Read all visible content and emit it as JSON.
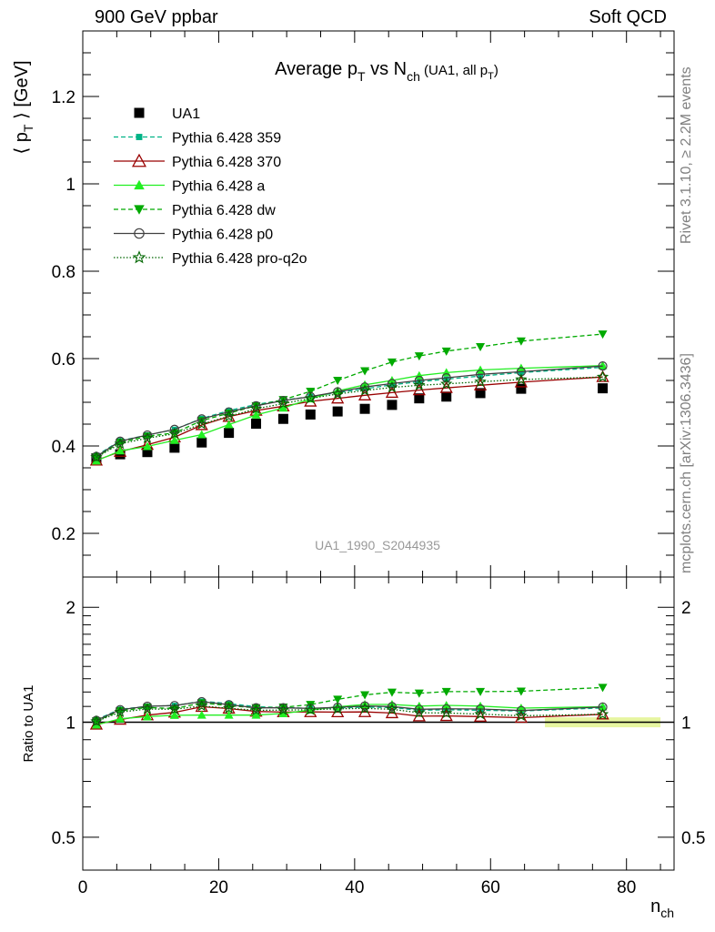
{
  "header": {
    "left": "900 GeV ppbar",
    "right": "Soft QCD"
  },
  "side_labels": {
    "rivet": "Rivet 3.1.10, ≥ 2.2M events",
    "mcplots": "mcplots.cern.ch [arXiv:1306.3436]"
  },
  "chart_data": [
    {
      "type": "line",
      "panel": "main",
      "title": {
        "main": "Average p",
        "sub1": "T",
        "mid": " vs N",
        "sub2": "ch",
        "extra": " (UA1, all p",
        "sub3": "T",
        "close": ")"
      },
      "ylabel": {
        "open": "⟨ p",
        "sub": "T",
        "close": " ⟩ [GeV]"
      },
      "ylim": [
        0.1,
        1.35
      ],
      "xlim": [
        0,
        87
      ],
      "yticks": [
        0.2,
        0.4,
        0.6,
        0.8,
        1,
        1.2
      ],
      "ytick_labels": [
        "0.2",
        "0.4",
        "0.6",
        "0.8",
        "1",
        "1.2"
      ],
      "watermark": "UA1_1990_S2044935",
      "legend_position": "top-left",
      "x": [
        2,
        5.5,
        9.5,
        13.5,
        17.5,
        21.5,
        25.5,
        29.5,
        33.5,
        37.5,
        41.5,
        45.5,
        49.5,
        53.5,
        58.5,
        64.5,
        76.5
      ],
      "series": [
        {
          "name": "UA1",
          "color": "#000000",
          "marker": "square",
          "line": "none",
          "values": [
            0.372,
            0.381,
            0.386,
            0.396,
            0.408,
            0.43,
            0.451,
            0.462,
            0.472,
            0.479,
            0.485,
            0.494,
            0.509,
            0.513,
            0.521,
            0.531,
            0.532
          ]
        },
        {
          "name": "Pythia 6.428 359",
          "color": "#00b386",
          "marker": "small-square",
          "line": "dashed",
          "values": [
            0.378,
            0.412,
            0.425,
            0.438,
            0.463,
            0.481,
            0.495,
            0.505,
            0.513,
            0.522,
            0.531,
            0.54,
            0.547,
            0.553,
            0.56,
            0.568,
            0.58
          ]
        },
        {
          "name": "Pythia 6.428 370",
          "color": "#990000",
          "marker": "open-triangle",
          "line": "solid",
          "values": [
            0.367,
            0.387,
            0.403,
            0.42,
            0.448,
            0.467,
            0.481,
            0.491,
            0.502,
            0.509,
            0.516,
            0.522,
            0.528,
            0.533,
            0.539,
            0.546,
            0.558
          ]
        },
        {
          "name": "Pythia 6.428 a",
          "color": "#22ee22",
          "marker": "triangle",
          "line": "solid",
          "values": [
            0.366,
            0.389,
            0.399,
            0.413,
            0.426,
            0.449,
            0.471,
            0.487,
            0.508,
            0.526,
            0.54,
            0.55,
            0.561,
            0.568,
            0.574,
            0.578,
            0.584
          ]
        },
        {
          "name": "Pythia 6.428 dw",
          "color": "#00aa00",
          "marker": "triangle-down",
          "line": "dashed",
          "values": [
            0.375,
            0.408,
            0.422,
            0.43,
            0.458,
            0.475,
            0.492,
            0.506,
            0.525,
            0.55,
            0.572,
            0.592,
            0.606,
            0.617,
            0.627,
            0.64,
            0.656
          ]
        },
        {
          "name": "Pythia 6.428 p0",
          "color": "#404040",
          "marker": "open-circle",
          "line": "solid",
          "values": [
            0.376,
            0.411,
            0.425,
            0.438,
            0.462,
            0.478,
            0.492,
            0.504,
            0.513,
            0.524,
            0.535,
            0.543,
            0.55,
            0.556,
            0.564,
            0.57,
            0.583
          ]
        },
        {
          "name": "Pythia 6.428 pro-q2o",
          "color": "#006600",
          "marker": "open-star",
          "line": "dotted",
          "values": [
            0.374,
            0.405,
            0.418,
            0.428,
            0.45,
            0.468,
            0.485,
            0.497,
            0.509,
            0.519,
            0.527,
            0.534,
            0.539,
            0.542,
            0.547,
            0.552,
            0.558
          ]
        }
      ]
    },
    {
      "type": "line",
      "panel": "ratio",
      "ylabel": "Ratio to UA1",
      "xlabel": {
        "main": "n",
        "sub": "ch"
      },
      "ylim": [
        0.41,
        2.4
      ],
      "log_y": true,
      "xlim": [
        0,
        87
      ],
      "xticks": [
        0,
        20,
        40,
        60,
        80
      ],
      "xtick_labels": [
        "0",
        "20",
        "40",
        "60",
        "80"
      ],
      "yticks": [
        0.5,
        1,
        2
      ],
      "ytick_labels": [
        "0.5",
        "1",
        "2"
      ],
      "reference": 1,
      "band_color": "#e6f5a0",
      "x": [
        2,
        5.5,
        9.5,
        13.5,
        17.5,
        21.5,
        25.5,
        29.5,
        33.5,
        37.5,
        41.5,
        45.5,
        49.5,
        53.5,
        58.5,
        64.5,
        76.5
      ],
      "series": [
        {
          "name": "Pythia 6.428 359",
          "color": "#00b386",
          "marker": "small-square",
          "line": "dashed",
          "values": [
            1.016,
            1.081,
            1.101,
            1.106,
            1.135,
            1.119,
            1.098,
            1.093,
            1.087,
            1.09,
            1.095,
            1.093,
            1.075,
            1.078,
            1.075,
            1.07,
            1.09
          ]
        },
        {
          "name": "Pythia 6.428 370",
          "color": "#990000",
          "marker": "open-triangle",
          "line": "solid",
          "values": [
            0.987,
            1.016,
            1.044,
            1.061,
            1.098,
            1.086,
            1.067,
            1.063,
            1.064,
            1.063,
            1.064,
            1.057,
            1.037,
            1.039,
            1.035,
            1.028,
            1.049
          ]
        },
        {
          "name": "Pythia 6.428 a",
          "color": "#22ee22",
          "marker": "triangle",
          "line": "solid",
          "values": [
            0.984,
            1.021,
            1.034,
            1.043,
            1.044,
            1.044,
            1.044,
            1.054,
            1.076,
            1.098,
            1.113,
            1.113,
            1.102,
            1.107,
            1.102,
            1.089,
            1.098
          ]
        },
        {
          "name": "Pythia 6.428 dw",
          "color": "#00aa00",
          "marker": "triangle-down",
          "line": "dashed",
          "values": [
            1.008,
            1.071,
            1.093,
            1.086,
            1.123,
            1.105,
            1.091,
            1.095,
            1.112,
            1.148,
            1.179,
            1.198,
            1.191,
            1.203,
            1.203,
            1.205,
            1.233
          ]
        },
        {
          "name": "Pythia 6.428 p0",
          "color": "#404040",
          "marker": "open-circle",
          "line": "solid",
          "values": [
            1.011,
            1.079,
            1.101,
            1.106,
            1.132,
            1.112,
            1.091,
            1.091,
            1.087,
            1.094,
            1.103,
            1.099,
            1.081,
            1.084,
            1.083,
            1.073,
            1.096
          ]
        },
        {
          "name": "Pythia 6.428 pro-q2o",
          "color": "#006600",
          "marker": "open-star",
          "line": "dotted",
          "values": [
            1.005,
            1.063,
            1.083,
            1.081,
            1.103,
            1.088,
            1.075,
            1.076,
            1.078,
            1.084,
            1.087,
            1.081,
            1.059,
            1.057,
            1.05,
            1.04,
            1.049
          ]
        }
      ]
    }
  ]
}
